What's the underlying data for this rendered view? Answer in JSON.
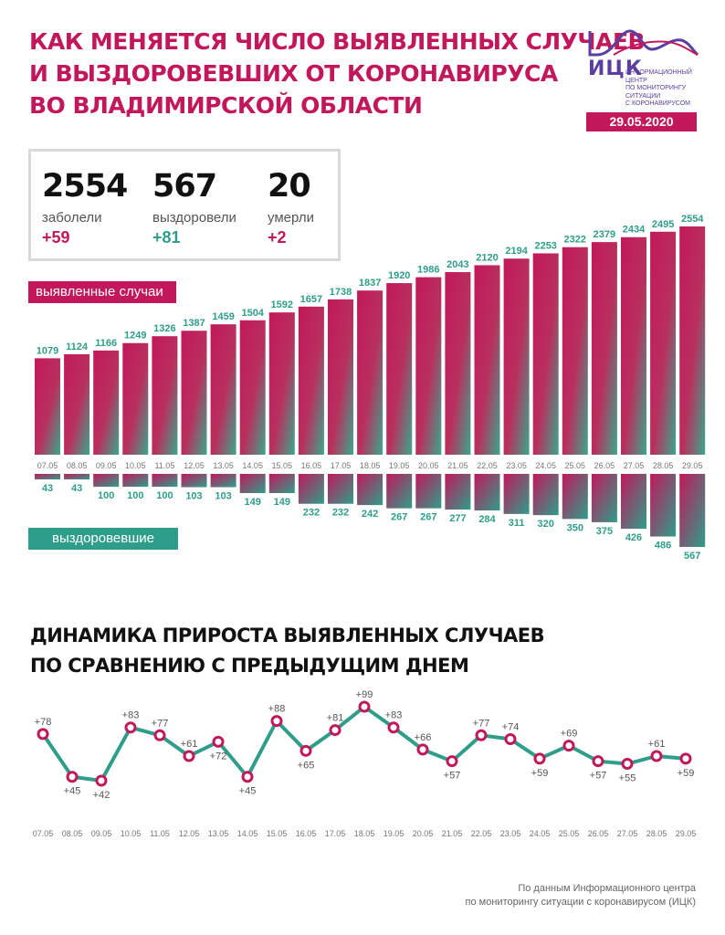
{
  "header": {
    "title_lines": [
      "Как меняется число выявленных случаев",
      "и выздоровевших от коронавируса",
      "во Владимирской области"
    ]
  },
  "logo": {
    "name": "ИЦК",
    "subtitle_lines": [
      "Информационный центр",
      "по мониторингу ситуации",
      "с коронавирусом"
    ]
  },
  "date": "29.05.2020",
  "stats": {
    "cases": {
      "value": "2554",
      "label": "заболели",
      "delta": "+59"
    },
    "recovered": {
      "value": "567",
      "label": "выздоровели",
      "delta": "+81"
    },
    "deaths": {
      "value": "20",
      "label": "умерли",
      "delta": "+2"
    }
  },
  "legend": {
    "cases": "выявленные случаи",
    "recovered": "выздоровевшие"
  },
  "growth_title_lines": [
    "Динамика прироста выявленных случаев",
    "по сравнению с предыдущим днем"
  ],
  "colors": {
    "magenta": "#c2185b",
    "teal": "#2e9e8a",
    "dark": "#111111"
  },
  "chart_data": [
    {
      "type": "bar",
      "categories": [
        "07.05",
        "08.05",
        "09.05",
        "10.05",
        "11.05",
        "12.05",
        "13.05",
        "14.05",
        "15.05",
        "16.05",
        "17.05",
        "18.05",
        "19.05",
        "20.05",
        "21.05",
        "22.05",
        "23.05",
        "24.05",
        "25.05",
        "26.05",
        "27.05",
        "28.05",
        "29.05"
      ],
      "series": [
        {
          "name": "выявленные случаи",
          "values": [
            1079,
            1124,
            1166,
            1249,
            1326,
            1387,
            1459,
            1504,
            1592,
            1657,
            1738,
            1837,
            1920,
            1986,
            2043,
            2120,
            2194,
            2253,
            2322,
            2379,
            2434,
            2495,
            2554
          ]
        },
        {
          "name": "выздоровевшие",
          "values": [
            43,
            43,
            100,
            100,
            100,
            103,
            103,
            149,
            149,
            232,
            232,
            242,
            267,
            267,
            277,
            284,
            311,
            320,
            350,
            375,
            426,
            486,
            567
          ]
        }
      ]
    },
    {
      "type": "line",
      "categories": [
        "07.05",
        "08.05",
        "09.05",
        "10.05",
        "11.05",
        "12.05",
        "13.05",
        "14.05",
        "15.05",
        "16.05",
        "17.05",
        "18.05",
        "19.05",
        "20.05",
        "21.05",
        "22.05",
        "23.05",
        "24.05",
        "25.05",
        "26.05",
        "27.05",
        "28.05",
        "29.05"
      ],
      "values": [
        78,
        45,
        42,
        83,
        77,
        61,
        72,
        45,
        88,
        65,
        81,
        99,
        83,
        66,
        57,
        77,
        74,
        59,
        69,
        57,
        55,
        61,
        59
      ],
      "labels": [
        "+78",
        "+45",
        "+42",
        "+83",
        "+77",
        "+61",
        "+72",
        "+45",
        "+88",
        "+65",
        "+81",
        "+99",
        "+83",
        "+66",
        "+57",
        "+77",
        "+74",
        "+59",
        "+69",
        "+57",
        "+55",
        "+61",
        "+59"
      ],
      "label_position": [
        "top",
        "bottom",
        "bottom",
        "top",
        "top",
        "top",
        "bottom",
        "bottom",
        "top",
        "bottom",
        "top",
        "top",
        "top",
        "top",
        "bottom",
        "top",
        "top",
        "bottom",
        "top",
        "bottom",
        "bottom",
        "top",
        "bottom"
      ]
    }
  ],
  "footnote_lines": [
    "По данным Информационного центра",
    "по мониторингу ситуации с коронавирусом (ИЦК)"
  ]
}
